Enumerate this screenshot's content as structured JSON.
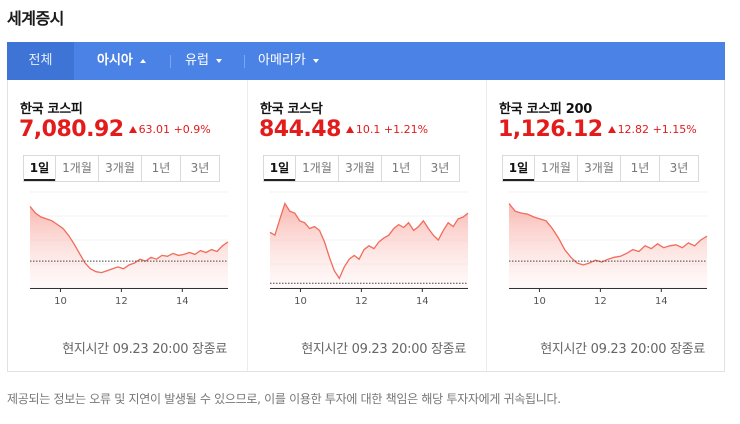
{
  "title": "세계증시",
  "tabs": [
    {
      "label": "전체"
    },
    {
      "label": "아시아",
      "active": true
    },
    {
      "label": "유럽"
    },
    {
      "label": "아메리카"
    }
  ],
  "periods": [
    "1일",
    "1개월",
    "3개월",
    "1년",
    "3년"
  ],
  "colors": {
    "up": "#e31b1b",
    "tabbar": "#4a82e6",
    "line": "#f26b5b"
  },
  "cards": [
    {
      "name": "한국 코스피",
      "value": "7,080.92",
      "change": "63.01",
      "change_pct": "+0.9%",
      "direction": "up",
      "local_time": "현지시간 09.23 20:00 장종료"
    },
    {
      "name": "한국 코스닥",
      "value": "844.48",
      "change": "10.1",
      "change_pct": "+1.21%",
      "direction": "up",
      "local_time": "현지시간 09.23 20:00 장종료"
    },
    {
      "name": "한국 코스피 200",
      "value": "1,126.12",
      "change": "12.82",
      "change_pct": "+1.15%",
      "direction": "up",
      "local_time": "현지시간 09.23 20:00 장종료"
    }
  ],
  "chart_data": [
    {
      "type": "area",
      "x_ticks": [
        "10",
        "12",
        "14"
      ],
      "x_range": [
        9,
        15.5
      ],
      "baseline": 0.28,
      "values": [
        0.85,
        0.78,
        0.74,
        0.72,
        0.7,
        0.66,
        0.62,
        0.55,
        0.46,
        0.36,
        0.26,
        0.2,
        0.17,
        0.16,
        0.18,
        0.2,
        0.22,
        0.2,
        0.24,
        0.26,
        0.3,
        0.28,
        0.32,
        0.3,
        0.34,
        0.33,
        0.36,
        0.34,
        0.35,
        0.37,
        0.35,
        0.39,
        0.37,
        0.4,
        0.38,
        0.44,
        0.48
      ]
    },
    {
      "type": "area",
      "x_ticks": [
        "10",
        "12",
        "14"
      ],
      "x_range": [
        9,
        15.5
      ],
      "baseline": 0.05,
      "values": [
        0.58,
        0.55,
        0.72,
        0.88,
        0.8,
        0.78,
        0.7,
        0.68,
        0.62,
        0.64,
        0.6,
        0.48,
        0.32,
        0.18,
        0.1,
        0.22,
        0.3,
        0.34,
        0.3,
        0.4,
        0.44,
        0.41,
        0.48,
        0.52,
        0.55,
        0.62,
        0.66,
        0.63,
        0.68,
        0.6,
        0.64,
        0.7,
        0.62,
        0.55,
        0.5,
        0.6,
        0.68,
        0.64,
        0.72,
        0.74,
        0.78
      ]
    },
    {
      "type": "area",
      "x_ticks": [
        "10",
        "12",
        "14"
      ],
      "x_range": [
        9,
        15.5
      ],
      "baseline": 0.28,
      "values": [
        0.88,
        0.8,
        0.78,
        0.77,
        0.74,
        0.72,
        0.7,
        0.62,
        0.52,
        0.4,
        0.32,
        0.26,
        0.24,
        0.26,
        0.29,
        0.27,
        0.3,
        0.32,
        0.33,
        0.36,
        0.4,
        0.38,
        0.44,
        0.41,
        0.46,
        0.42,
        0.44,
        0.45,
        0.42,
        0.47,
        0.44,
        0.5,
        0.54
      ]
    }
  ],
  "disclaimer": "제공되는 정보는 오류 및 지연이 발생될 수 있으므로, 이를 이용한 투자에 대한 책임은 해당 투자자에게 귀속됩니다."
}
